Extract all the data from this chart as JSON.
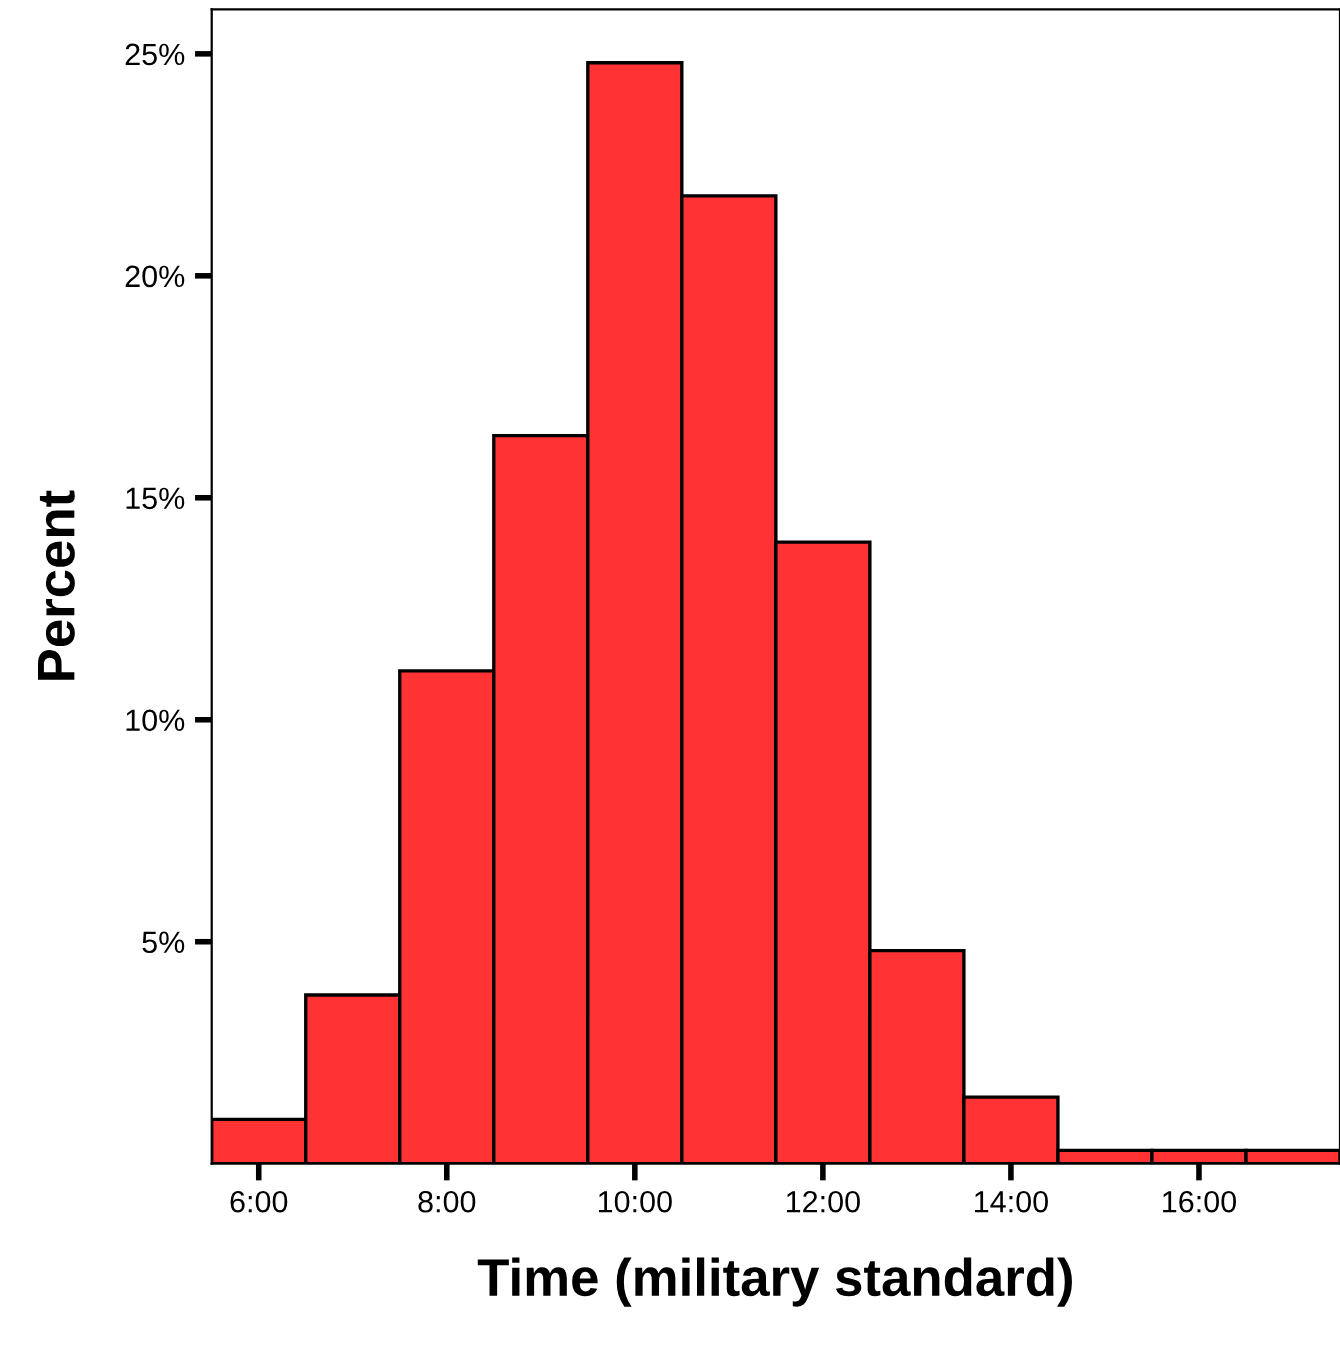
{
  "chart_data": {
    "type": "histogram",
    "xlabel": "Time (military standard)",
    "ylabel": "Percent",
    "bins": [
      5.5,
      6.5,
      7.5,
      8.5,
      9.5,
      10.5,
      11.5,
      12.5,
      13.5,
      14.5,
      15.5,
      16.5,
      17.5
    ],
    "values": [
      1.0,
      3.8,
      11.1,
      16.4,
      24.8,
      21.8,
      14.0,
      4.8,
      1.5,
      0.3,
      0.3,
      0.3
    ],
    "color": "#ff3333",
    "grid": false,
    "xlim": [
      5.5,
      17.5
    ],
    "ylim": [
      0,
      26
    ],
    "xticks": [
      {
        "value": 6,
        "label": "6:00"
      },
      {
        "value": 8,
        "label": "8:00"
      },
      {
        "value": 10,
        "label": "10:00"
      },
      {
        "value": 12,
        "label": "12:00"
      },
      {
        "value": 14,
        "label": "14:00"
      },
      {
        "value": 16,
        "label": "16:00"
      }
    ],
    "yticks": [
      {
        "value": 5,
        "label": "5%"
      },
      {
        "value": 10,
        "label": "10%"
      },
      {
        "value": 15,
        "label": "15%"
      },
      {
        "value": 20,
        "label": "20%"
      },
      {
        "value": 25,
        "label": "25%"
      }
    ]
  }
}
